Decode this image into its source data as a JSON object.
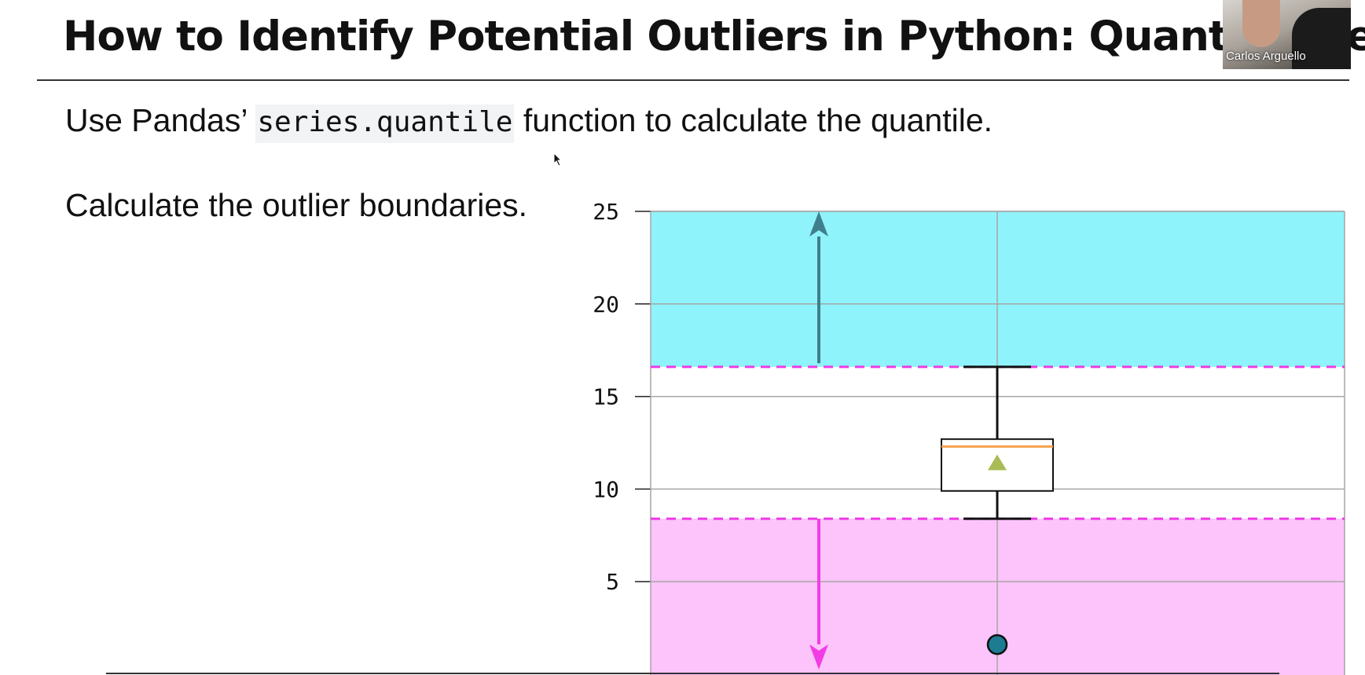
{
  "slide": {
    "title": "How to Identify Potential Outliers in Python: Quantitative",
    "line1": {
      "prefix": "Use Pandas’ ",
      "code": "series.quantile",
      "suffix": " function to calculate the quantile."
    },
    "line2": "Calculate the outlier boundaries."
  },
  "webcam": {
    "name": "Carlos Arguello"
  },
  "colors": {
    "upper_region": "#8ff3fb",
    "lower_region": "#fcc4fb",
    "boundary_line": "#ee3ae6",
    "upper_arrow": "#3f7f8b",
    "lower_arrow": "#f23ce6",
    "median": "#f5a04a",
    "mean_marker": "#a9bc55",
    "outlier_point": "#1d7b92"
  },
  "chart_data": {
    "type": "box",
    "y_ticks": [
      5,
      10,
      15,
      20,
      25
    ],
    "y_range": [
      0,
      25
    ],
    "grid": true,
    "upper_boundary": 16.6,
    "lower_boundary": 8.4,
    "box": {
      "whisker_high": 16.6,
      "q3": 12.7,
      "median": 12.3,
      "mean": 11.4,
      "q1": 9.9,
      "whisker_low": 8.4
    },
    "outliers": [
      1.6
    ],
    "annotations": [
      {
        "type": "arrow",
        "direction": "up",
        "from": 16.8,
        "to": 25
      },
      {
        "type": "arrow",
        "direction": "down",
        "from": 8.4,
        "to": 0
      }
    ]
  }
}
